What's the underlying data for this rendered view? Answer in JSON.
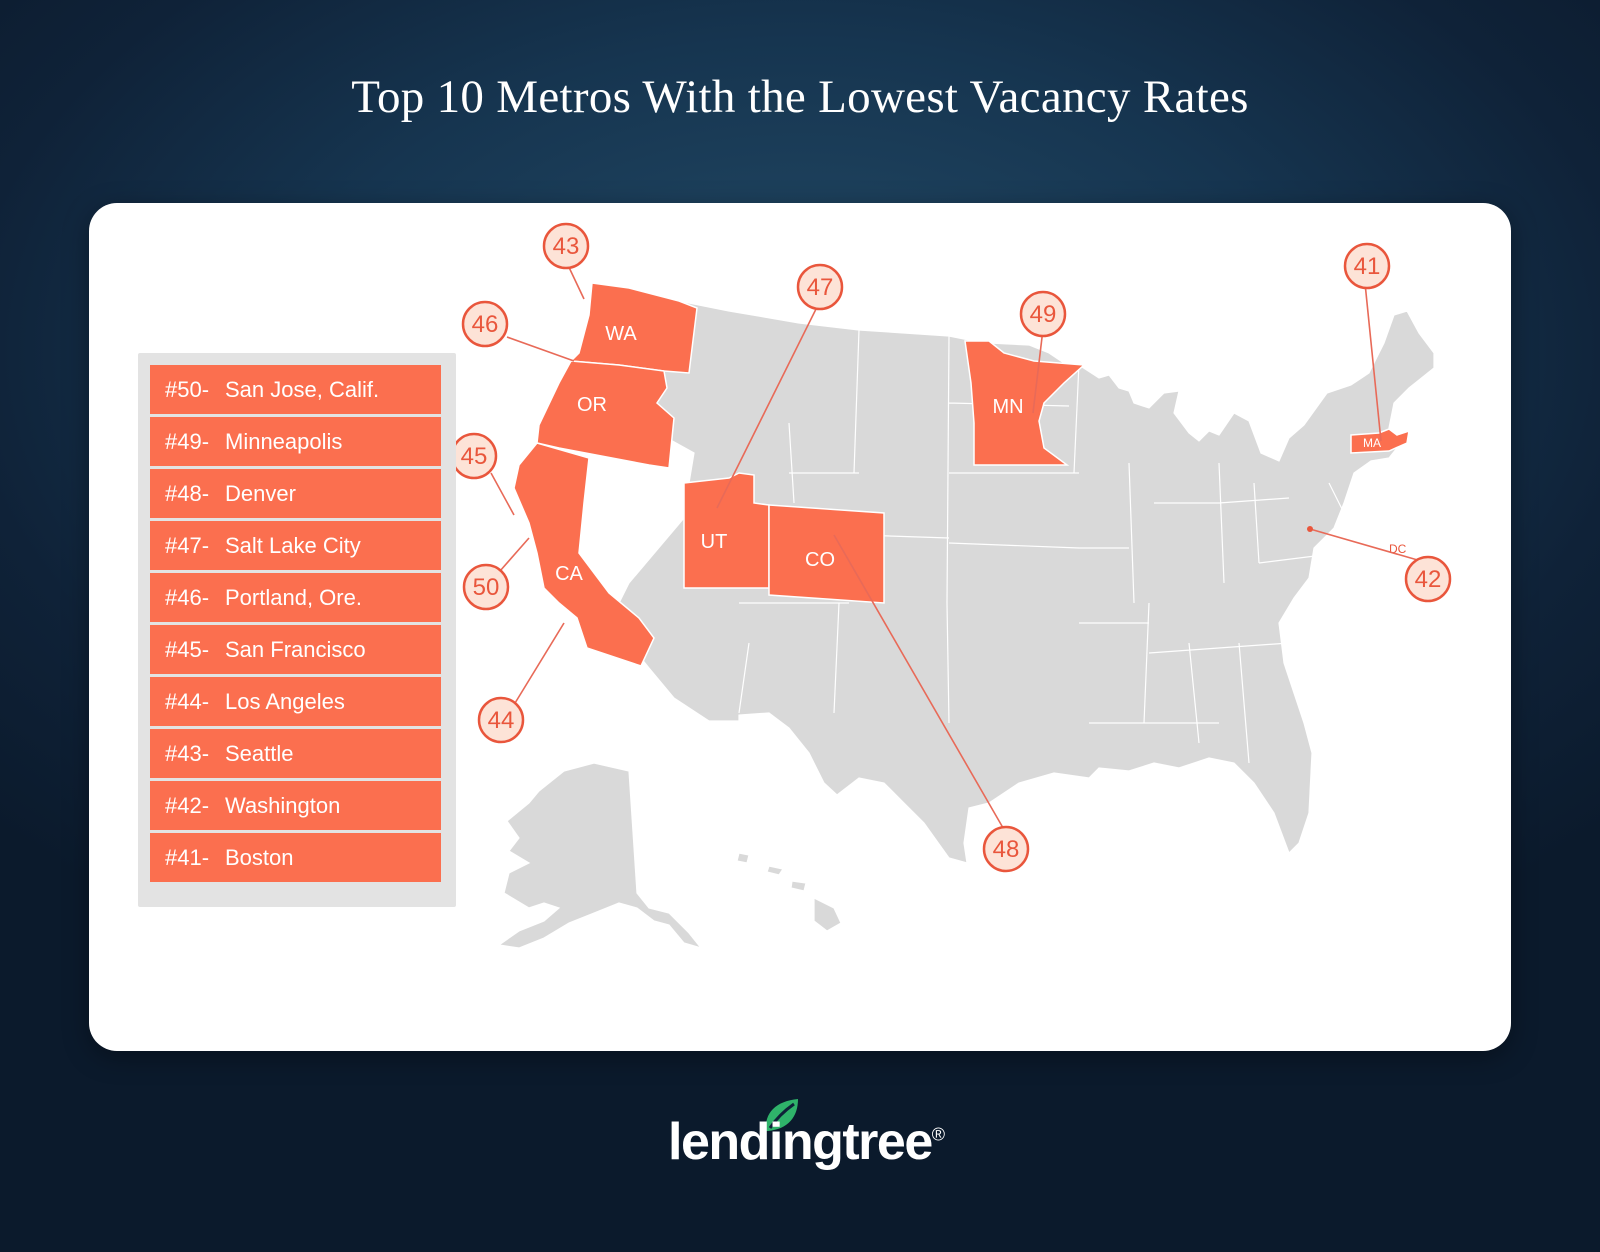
{
  "title": "Top 10 Metros With the Lowest Vacancy Rates",
  "rankings": [
    {
      "rank": "#50-",
      "city": "San Jose, Calif."
    },
    {
      "rank": "#49-",
      "city": "Minneapolis"
    },
    {
      "rank": "#48-",
      "city": "Denver"
    },
    {
      "rank": "#47-",
      "city": "Salt Lake City"
    },
    {
      "rank": "#46-",
      "city": "Portland, Ore."
    },
    {
      "rank": "#45-",
      "city": "San Francisco"
    },
    {
      "rank": "#44-",
      "city": "Los Angeles"
    },
    {
      "rank": "#43-",
      "city": "Seattle"
    },
    {
      "rank": "#42-",
      "city": "Washington"
    },
    {
      "rank": "#41-",
      "city": "Boston"
    }
  ],
  "highlighted_states": [
    "WA",
    "OR",
    "CA",
    "UT",
    "CO",
    "MN",
    "MA"
  ],
  "state_labels": {
    "WA": "WA",
    "OR": "OR",
    "CA": "CA",
    "UT": "UT",
    "CO": "CO",
    "MN": "MN",
    "MA": "MA",
    "DC": "DC"
  },
  "badges": {
    "b41": "41",
    "b42": "42",
    "b43": "43",
    "b44": "44",
    "b45": "45",
    "b46": "46",
    "b47": "47",
    "b48": "48",
    "b49": "49",
    "b50": "50"
  },
  "logo": {
    "text": "lendingtree",
    "registered": "®"
  },
  "colors": {
    "highlight": "#fb6f4f",
    "base_state": "#d9d9d9",
    "badge_stroke": "#e9563c",
    "badge_fill": "#fde3d7",
    "logo_leaf": "#2fb36a"
  }
}
